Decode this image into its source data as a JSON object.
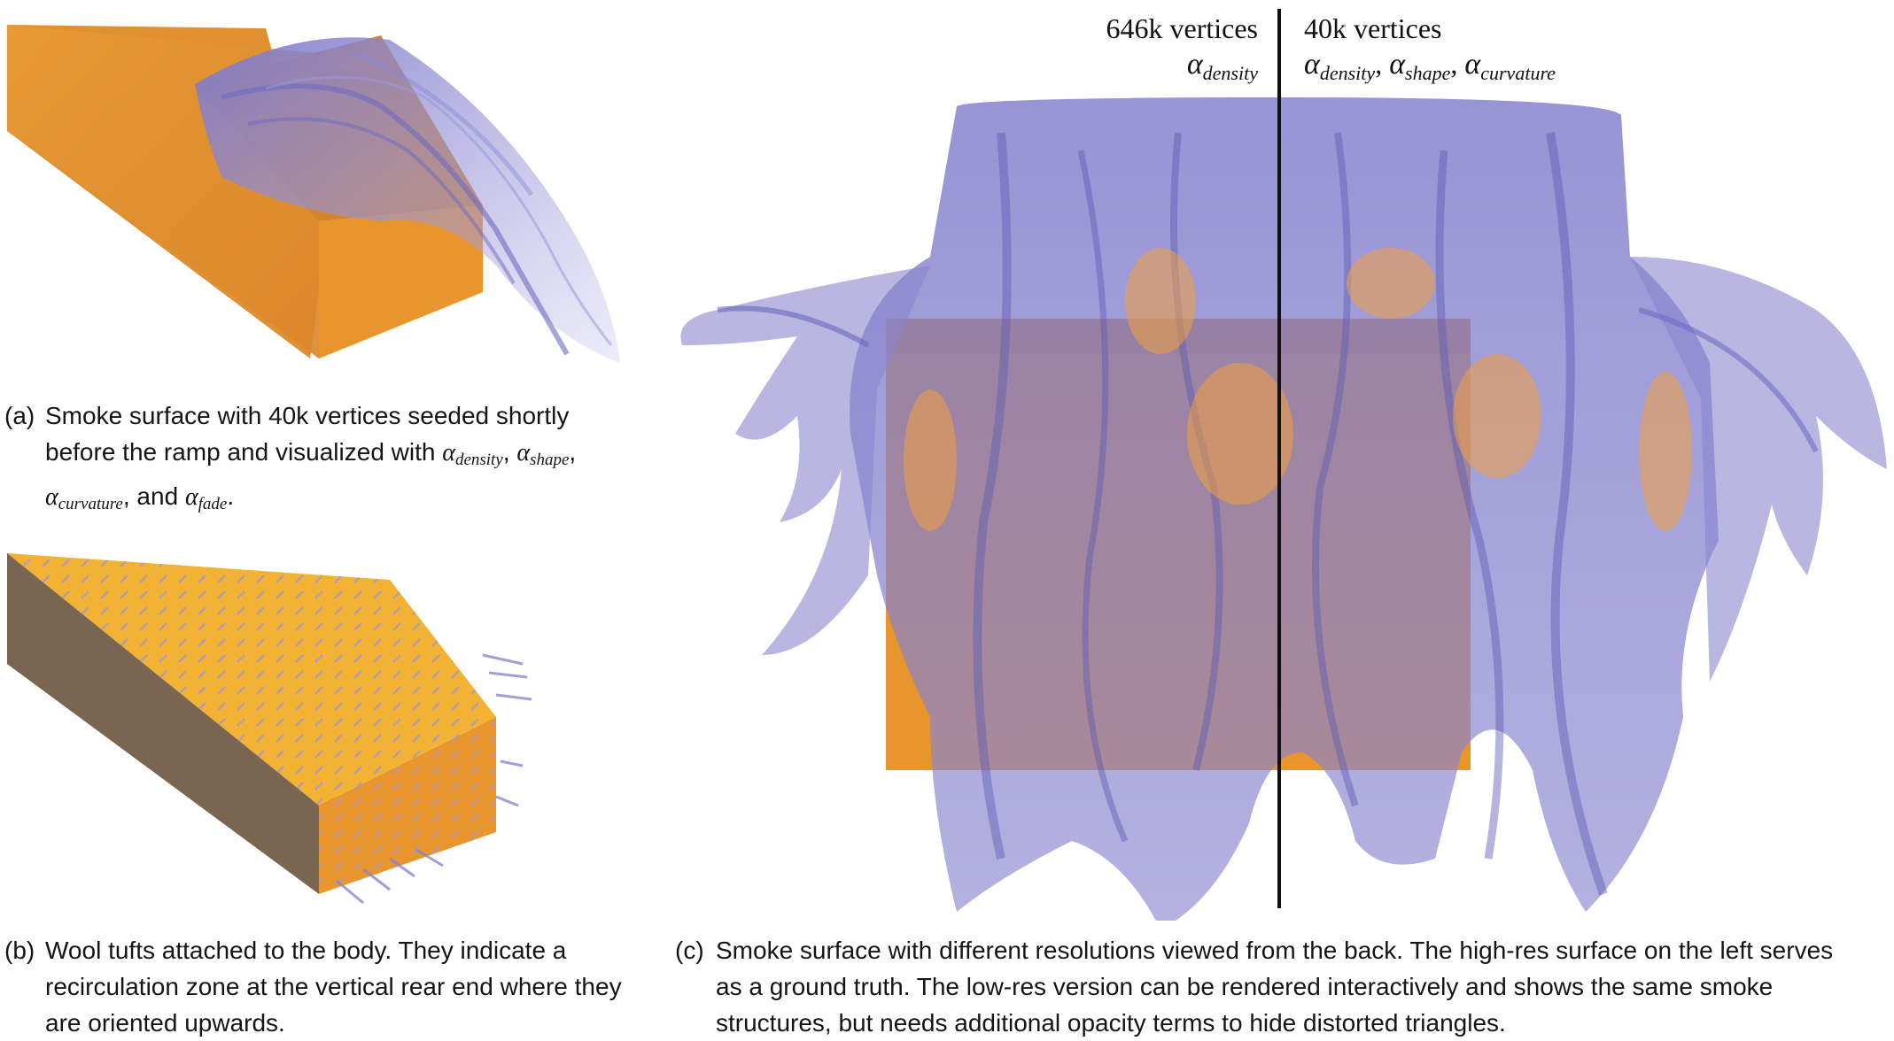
{
  "panels": {
    "a": {
      "label": "(a)",
      "caption_line1": "Smoke surface with 40k vertices seeded shortly",
      "caption_line2_pre": "before the ramp and visualized with",
      "alpha": "α",
      "sub_density": "density",
      "sub_shape": "shape",
      "sub_curvature": "curvature",
      "sub_fade": "fade",
      "comma": ",",
      "and_text": ", and",
      "period": "."
    },
    "b": {
      "label": "(b)",
      "caption_line1": "Wool tufts attached to the body. They indicate a",
      "caption_line2": "recirculation zone at the vertical rear end where they",
      "caption_line3": "are oriented upwards."
    },
    "c": {
      "label": "(c)",
      "caption_line1": "Smoke surface with different resolutions viewed from the back. The high-res surface on the left serves",
      "caption_line2": "as a ground truth. The low-res version can be rendered interactively and shows the same smoke",
      "caption_line3": "structures, but needs additional opacity terms to hide distorted triangles.",
      "left_title": "646k vertices",
      "right_title": "40k vertices",
      "alpha": "α",
      "sub_density": "density",
      "sub_shape": "shape",
      "sub_curvature": "curvature",
      "comma": ","
    }
  },
  "colors": {
    "body_orange": "#e8952e",
    "body_side_dark": "#c47a22",
    "wool_top": "#f2b233",
    "body_brown": "#7a6650",
    "smoke": "#8a86cf",
    "divider": "#111111"
  }
}
